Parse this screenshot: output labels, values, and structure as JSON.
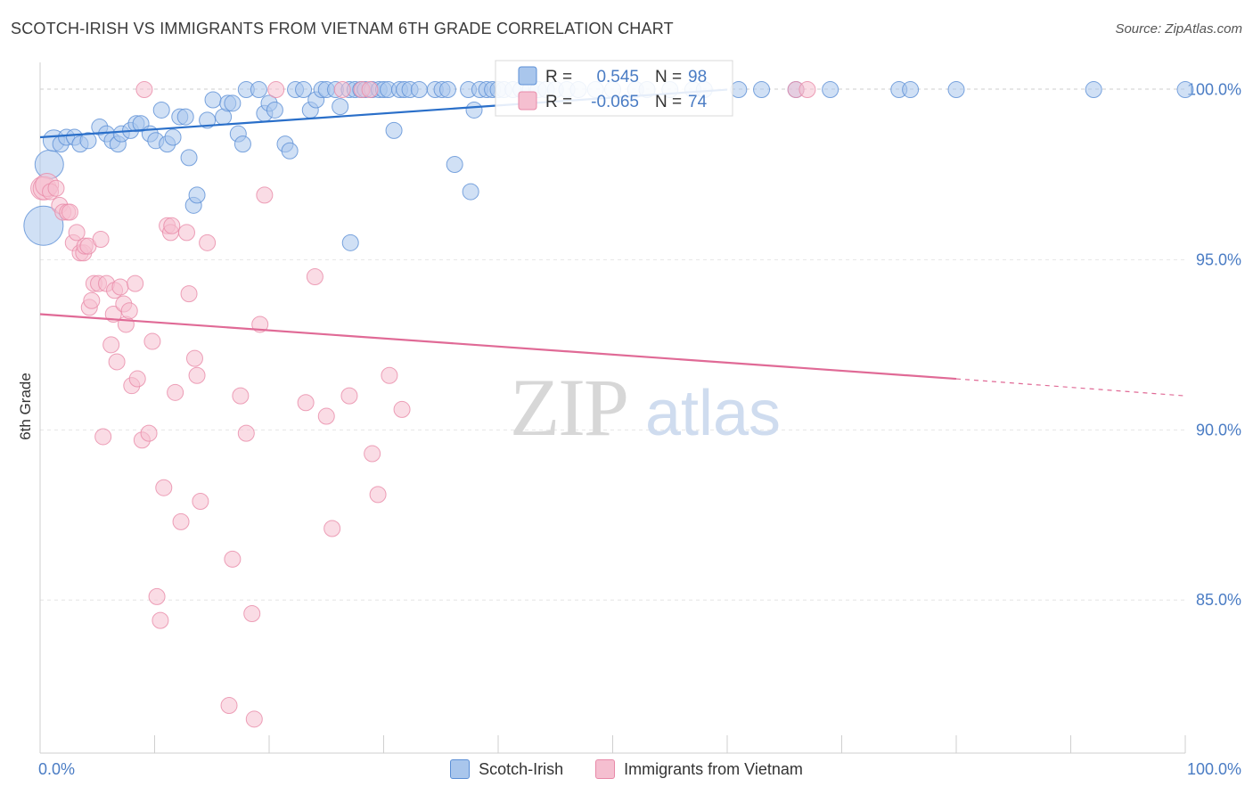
{
  "header": {
    "title": "SCOTCH-IRISH VS IMMIGRANTS FROM VIETNAM 6TH GRADE CORRELATION CHART",
    "source": "Source: ZipAtlas.com"
  },
  "watermark": {
    "zip": "ZIP",
    "atlas": "atlas"
  },
  "colors": {
    "blue": "#5b8fd6",
    "blue_fill": "#a9c6ec",
    "blue_line": "#2a6fc9",
    "pink": "#e889a8",
    "pink_fill": "#f5bfd0",
    "pink_line": "#e06a96",
    "tick_label": "#4a7cc4",
    "grid": "#e6e6e6"
  },
  "stats_box": {
    "rows": [
      {
        "r_label": "R =",
        "r_value": "0.545",
        "n_label": "N =",
        "n_value": "98"
      },
      {
        "r_label": "R =",
        "r_value": "-0.065",
        "n_label": "N =",
        "n_value": "74"
      }
    ]
  },
  "chart_data": {
    "type": "scatter",
    "title": "SCOTCH-IRISH VS IMMIGRANTS FROM VIETNAM 6TH GRADE CORRELATION CHART",
    "xlabel": "",
    "ylabel": "6th Grade",
    "xlim": [
      0,
      100
    ],
    "ylim": [
      80.5,
      100.8
    ],
    "x_tick_labels": [
      "0.0%",
      "100.0%"
    ],
    "y_ticks": [
      85,
      90,
      95,
      100
    ],
    "y_tick_labels": [
      "85.0%",
      "90.0%",
      "95.0%",
      "100.0%"
    ],
    "grid": true,
    "legend_position": "bottom",
    "series": [
      {
        "name": "Scotch-Irish",
        "color": "#5b8fd6",
        "r": 0.545,
        "n": 98,
        "trend": {
          "x": [
            0,
            60
          ],
          "y": [
            98.6,
            100
          ]
        },
        "points": [
          [
            0.3,
            96.0
          ],
          [
            0.8,
            97.8
          ],
          [
            1.2,
            98.5
          ],
          [
            1.8,
            98.4
          ],
          [
            2.3,
            98.6
          ],
          [
            3.0,
            98.6
          ],
          [
            3.5,
            98.4
          ],
          [
            4.2,
            98.5
          ],
          [
            5.2,
            98.9
          ],
          [
            5.8,
            98.7
          ],
          [
            6.3,
            98.5
          ],
          [
            6.8,
            98.4
          ],
          [
            7.1,
            98.7
          ],
          [
            7.9,
            98.8
          ],
          [
            8.4,
            99.0
          ],
          [
            8.8,
            99.0
          ],
          [
            9.6,
            98.7
          ],
          [
            10.1,
            98.5
          ],
          [
            10.6,
            99.4
          ],
          [
            11.1,
            98.4
          ],
          [
            11.6,
            98.6
          ],
          [
            12.2,
            99.2
          ],
          [
            12.7,
            99.2
          ],
          [
            13.0,
            98.0
          ],
          [
            13.4,
            96.6
          ],
          [
            13.7,
            96.9
          ],
          [
            14.6,
            99.1
          ],
          [
            15.1,
            99.7
          ],
          [
            16.0,
            99.2
          ],
          [
            16.4,
            99.6
          ],
          [
            16.8,
            99.6
          ],
          [
            17.3,
            98.7
          ],
          [
            17.7,
            98.4
          ],
          [
            18.0,
            100.0
          ],
          [
            19.1,
            100.0
          ],
          [
            19.6,
            99.3
          ],
          [
            20.0,
            99.6
          ],
          [
            20.5,
            99.4
          ],
          [
            21.4,
            98.4
          ],
          [
            21.8,
            98.2
          ],
          [
            22.3,
            100.0
          ],
          [
            23.0,
            100.0
          ],
          [
            23.6,
            99.4
          ],
          [
            24.1,
            99.7
          ],
          [
            24.6,
            100.0
          ],
          [
            25.0,
            100.0
          ],
          [
            25.8,
            100.0
          ],
          [
            26.2,
            99.5
          ],
          [
            27.0,
            100.0
          ],
          [
            27.1,
            95.5
          ],
          [
            27.5,
            100.0
          ],
          [
            28.0,
            100.0
          ],
          [
            28.4,
            100.0
          ],
          [
            29.0,
            100.0
          ],
          [
            29.6,
            100.0
          ],
          [
            30.0,
            100.0
          ],
          [
            30.4,
            100.0
          ],
          [
            30.9,
            98.8
          ],
          [
            31.4,
            100.0
          ],
          [
            31.8,
            100.0
          ],
          [
            32.3,
            100.0
          ],
          [
            33.1,
            100.0
          ],
          [
            34.5,
            100.0
          ],
          [
            35.1,
            100.0
          ],
          [
            35.6,
            100.0
          ],
          [
            36.2,
            97.8
          ],
          [
            37.4,
            100.0
          ],
          [
            37.6,
            97.0
          ],
          [
            37.9,
            99.4
          ],
          [
            38.4,
            100.0
          ],
          [
            39.0,
            100.0
          ],
          [
            39.5,
            100.0
          ],
          [
            40.0,
            100.0
          ],
          [
            40.5,
            100.0
          ],
          [
            41.3,
            100.0
          ],
          [
            42.0,
            100.0
          ],
          [
            42.8,
            100.0
          ],
          [
            43.5,
            100.0
          ],
          [
            44.2,
            100.0
          ],
          [
            45.0,
            100.0
          ],
          [
            46.0,
            100.0
          ],
          [
            47.0,
            100.0
          ],
          [
            48.5,
            100.0
          ],
          [
            50.0,
            100.0
          ],
          [
            52.0,
            100.0
          ],
          [
            53.0,
            100.0
          ],
          [
            55.0,
            100.0
          ],
          [
            57.0,
            100.0
          ],
          [
            58.0,
            100.0
          ],
          [
            61.0,
            100.0
          ],
          [
            63.0,
            100.0
          ],
          [
            66.0,
            100.0
          ],
          [
            69.0,
            100.0
          ],
          [
            75.0,
            100.0
          ],
          [
            76.0,
            100.0
          ],
          [
            80.0,
            100.0
          ],
          [
            92.0,
            100.0
          ],
          [
            100.0,
            100.0
          ]
        ]
      },
      {
        "name": "Immigrants from Vietnam",
        "color": "#e889a8",
        "r": -0.065,
        "n": 74,
        "trend": {
          "x": [
            0,
            80
          ],
          "y": [
            93.4,
            91.5
          ],
          "dash_x": [
            80,
            100
          ],
          "dash_y": [
            91.5,
            91.0
          ]
        },
        "points": [
          [
            0.2,
            97.1
          ],
          [
            0.4,
            97.1
          ],
          [
            0.6,
            97.2
          ],
          [
            0.9,
            97.0
          ],
          [
            1.4,
            97.1
          ],
          [
            1.7,
            96.6
          ],
          [
            2.0,
            96.4
          ],
          [
            2.4,
            96.4
          ],
          [
            2.6,
            96.4
          ],
          [
            2.9,
            95.5
          ],
          [
            3.2,
            95.8
          ],
          [
            3.5,
            95.2
          ],
          [
            3.8,
            95.2
          ],
          [
            3.9,
            95.4
          ],
          [
            4.2,
            95.4
          ],
          [
            4.3,
            93.6
          ],
          [
            4.5,
            93.8
          ],
          [
            4.7,
            94.3
          ],
          [
            5.1,
            94.3
          ],
          [
            5.3,
            95.6
          ],
          [
            5.5,
            89.8
          ],
          [
            5.8,
            94.3
          ],
          [
            6.2,
            92.5
          ],
          [
            6.4,
            93.4
          ],
          [
            6.5,
            94.1
          ],
          [
            6.7,
            92.0
          ],
          [
            7.0,
            94.2
          ],
          [
            7.3,
            93.7
          ],
          [
            7.5,
            93.1
          ],
          [
            7.8,
            93.5
          ],
          [
            8.0,
            91.3
          ],
          [
            8.3,
            94.3
          ],
          [
            8.5,
            91.5
          ],
          [
            8.9,
            89.7
          ],
          [
            9.1,
            100.0
          ],
          [
            9.5,
            89.9
          ],
          [
            9.8,
            92.6
          ],
          [
            10.2,
            85.1
          ],
          [
            10.5,
            84.4
          ],
          [
            10.8,
            88.3
          ],
          [
            11.1,
            96.0
          ],
          [
            11.4,
            95.8
          ],
          [
            11.5,
            96.0
          ],
          [
            11.8,
            91.1
          ],
          [
            12.3,
            87.3
          ],
          [
            12.8,
            95.8
          ],
          [
            13.0,
            94.0
          ],
          [
            13.5,
            92.1
          ],
          [
            13.7,
            91.6
          ],
          [
            14.0,
            87.9
          ],
          [
            14.6,
            95.5
          ],
          [
            16.5,
            81.9
          ],
          [
            16.8,
            86.2
          ],
          [
            17.5,
            91.0
          ],
          [
            18.0,
            89.9
          ],
          [
            18.5,
            84.6
          ],
          [
            18.7,
            81.5
          ],
          [
            19.2,
            93.1
          ],
          [
            19.6,
            96.9
          ],
          [
            20.6,
            100.0
          ],
          [
            23.2,
            90.8
          ],
          [
            24.0,
            94.5
          ],
          [
            25.0,
            90.4
          ],
          [
            25.5,
            87.1
          ],
          [
            26.4,
            100.0
          ],
          [
            27.0,
            91.0
          ],
          [
            28.1,
            100.0
          ],
          [
            28.8,
            100.0
          ],
          [
            29.0,
            89.3
          ],
          [
            29.5,
            88.1
          ],
          [
            30.5,
            91.6
          ],
          [
            31.6,
            90.6
          ],
          [
            66.0,
            100.0
          ],
          [
            67.0,
            100.0
          ]
        ]
      }
    ]
  },
  "legend": {
    "items": [
      {
        "label": "Scotch-Irish"
      },
      {
        "label": "Immigrants from Vietnam"
      }
    ]
  }
}
